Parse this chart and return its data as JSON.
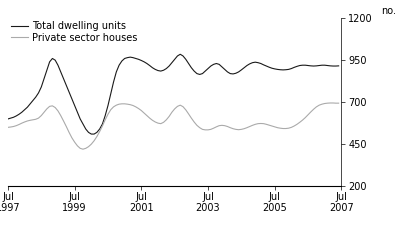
{
  "title": "",
  "ylabel_right": "no.",
  "legend_total": "Total dwelling units",
  "legend_private": "Private sector houses",
  "color_total": "#1a1a1a",
  "color_private": "#aaaaaa",
  "ylim": [
    200,
    1200
  ],
  "yticks": [
    200,
    450,
    700,
    950,
    1200
  ],
  "xtick_labels": [
    "Jul\n1997",
    "Jul\n1999",
    "Jul\n2001",
    "Jul\n2003",
    "Jul\n2005",
    "Jul\n2007"
  ],
  "xtick_positions": [
    0,
    24,
    48,
    72,
    96,
    120
  ],
  "total_dwelling": [
    600,
    605,
    610,
    618,
    628,
    640,
    655,
    670,
    690,
    710,
    730,
    755,
    790,
    840,
    890,
    940,
    960,
    950,
    920,
    880,
    840,
    800,
    760,
    720,
    680,
    640,
    600,
    570,
    540,
    520,
    510,
    510,
    520,
    540,
    570,
    620,
    680,
    750,
    820,
    880,
    920,
    945,
    960,
    965,
    968,
    965,
    960,
    955,
    948,
    940,
    930,
    918,
    905,
    895,
    888,
    885,
    890,
    900,
    915,
    935,
    955,
    975,
    985,
    975,
    955,
    930,
    905,
    885,
    870,
    865,
    870,
    885,
    900,
    915,
    925,
    930,
    925,
    910,
    895,
    880,
    870,
    868,
    872,
    880,
    892,
    905,
    918,
    928,
    935,
    938,
    935,
    930,
    922,
    915,
    908,
    902,
    898,
    895,
    893,
    892,
    893,
    895,
    900,
    907,
    913,
    918,
    920,
    920,
    918,
    916,
    915,
    916,
    918,
    920,
    920,
    918,
    916,
    915,
    915,
    916
  ],
  "private_houses": [
    550,
    552,
    555,
    560,
    567,
    575,
    582,
    588,
    592,
    595,
    598,
    605,
    620,
    640,
    660,
    675,
    678,
    668,
    648,
    620,
    588,
    555,
    520,
    488,
    462,
    440,
    425,
    420,
    425,
    435,
    450,
    470,
    495,
    525,
    558,
    595,
    628,
    655,
    672,
    682,
    688,
    690,
    690,
    688,
    685,
    680,
    672,
    662,
    650,
    635,
    620,
    605,
    592,
    582,
    575,
    572,
    580,
    595,
    615,
    640,
    660,
    675,
    682,
    673,
    654,
    630,
    605,
    582,
    562,
    548,
    538,
    535,
    535,
    538,
    545,
    553,
    560,
    562,
    560,
    555,
    548,
    542,
    538,
    536,
    538,
    542,
    548,
    555,
    562,
    568,
    572,
    573,
    572,
    568,
    563,
    558,
    553,
    548,
    545,
    543,
    543,
    545,
    550,
    558,
    568,
    580,
    593,
    608,
    625,
    642,
    658,
    672,
    682,
    688,
    692,
    694,
    695,
    695,
    694,
    694
  ]
}
